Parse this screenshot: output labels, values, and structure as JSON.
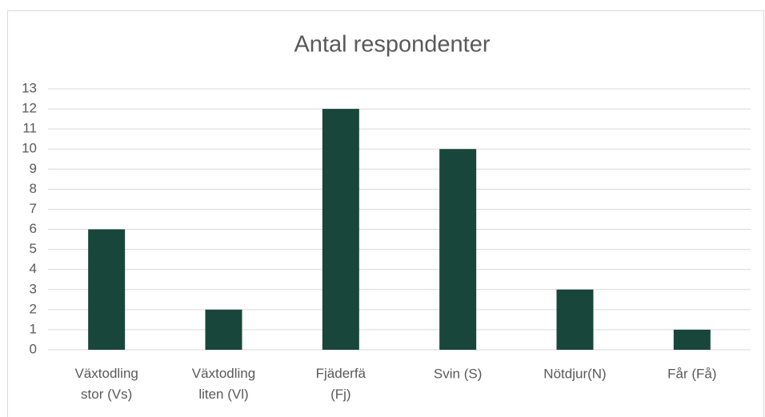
{
  "chart_data": {
    "type": "bar",
    "title": "Antal respondenter",
    "categories": [
      "Växtodling stor (Vs)",
      "Växtodling liten (Vl)",
      "Fjäderfä (Fj)",
      "Svin (S)",
      "Nötdjur(N)",
      "Får (Få)"
    ],
    "values": [
      6,
      2,
      12,
      10,
      3,
      1
    ],
    "color": "#18463a",
    "ylim": [
      0,
      13
    ],
    "yticks": [
      0,
      1,
      2,
      3,
      4,
      5,
      6,
      7,
      8,
      9,
      10,
      11,
      12,
      13
    ],
    "grid": true
  }
}
